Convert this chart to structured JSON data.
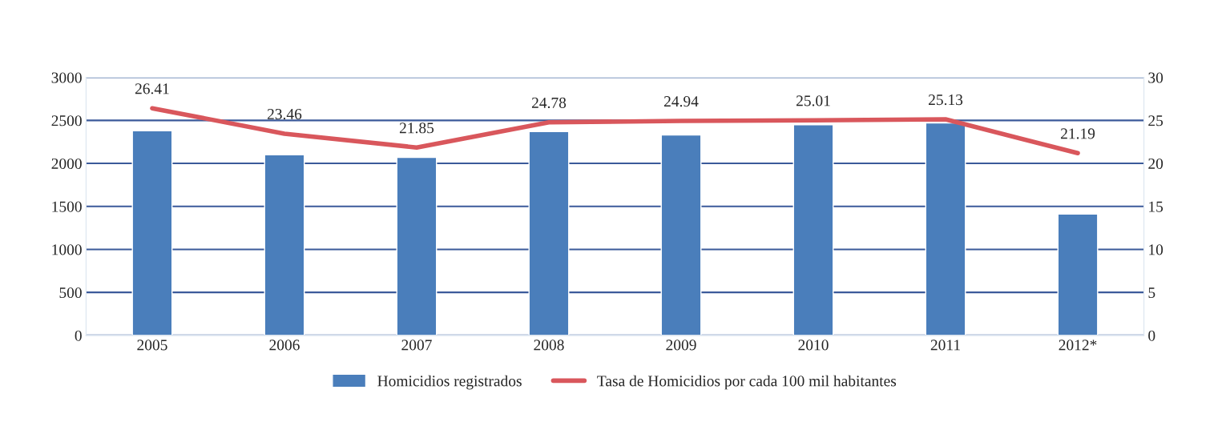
{
  "chart_data": {
    "type": "bar",
    "categories": [
      "2005",
      "2006",
      "2007",
      "2008",
      "2009",
      "2010",
      "2011",
      "2012*"
    ],
    "series": [
      {
        "name": "Homicidios registrados",
        "color": "#4a7ebb",
        "values": [
          2380,
          2100,
          2070,
          2370,
          2330,
          2450,
          2470,
          1410
        ]
      },
      {
        "name": "Tasa de Homicidios por cada 100 mil habitantes",
        "color": "#d9575c",
        "type": "line",
        "axis": "y2",
        "values": [
          26.41,
          23.46,
          21.85,
          24.78,
          24.94,
          25.01,
          25.13,
          21.19
        ],
        "value_labels": [
          "26.41",
          "23.46",
          "21.85",
          "24.78",
          "24.94",
          "25.01",
          "25.13",
          "21.19"
        ]
      }
    ],
    "ylim": [
      0,
      3000
    ],
    "yticks": [
      0,
      500,
      1000,
      1500,
      2000,
      2500,
      3000
    ],
    "y2lim": [
      0,
      30
    ],
    "y2ticks": [
      0,
      5,
      10,
      15,
      20,
      25,
      30
    ],
    "grid": "y",
    "legend": "bottom",
    "marker": "none",
    "line_style": "solid"
  }
}
